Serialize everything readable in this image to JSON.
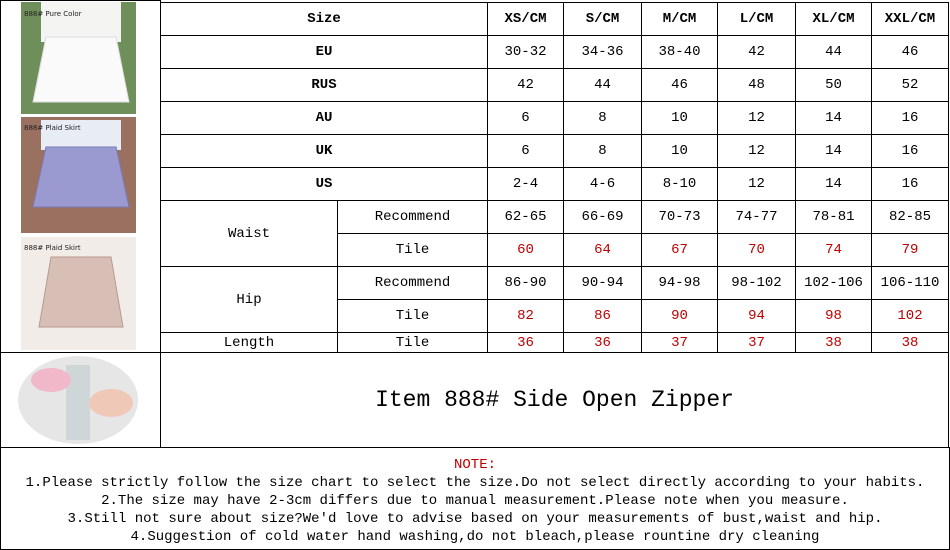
{
  "images": [
    {
      "caption": "888# Pure Color"
    },
    {
      "caption": "888# Plaid Skirt"
    },
    {
      "caption": "888# Plaid Skirt"
    }
  ],
  "table": {
    "header": [
      "Size",
      "XS/CM",
      "S/CM",
      "M/CM",
      "L/CM",
      "XL/CM",
      "XXL/CM"
    ],
    "simple_rows": [
      {
        "label": "EU",
        "cells": [
          "30-32",
          "34-36",
          "38-40",
          "42",
          "44",
          "46"
        ]
      },
      {
        "label": "RUS",
        "cells": [
          "42",
          "44",
          "46",
          "48",
          "50",
          "52"
        ]
      },
      {
        "label": "AU",
        "cells": [
          "6",
          "8",
          "10",
          "12",
          "14",
          "16"
        ]
      },
      {
        "label": "UK",
        "cells": [
          "6",
          "8",
          "10",
          "12",
          "14",
          "16"
        ]
      },
      {
        "label": "US",
        "cells": [
          "2-4",
          "4-6",
          "8-10",
          "12",
          "14",
          "16"
        ]
      }
    ],
    "measure_rows": [
      {
        "label": "Waist",
        "rows": [
          {
            "label": "Recommend",
            "cells": [
              "62-65",
              "66-69",
              "70-73",
              "74-77",
              "78-81",
              "82-85"
            ],
            "color": "#000000"
          },
          {
            "label": "Tile",
            "cells": [
              "60",
              "64",
              "67",
              "70",
              "74",
              "79"
            ],
            "color": "#c00000"
          }
        ]
      },
      {
        "label": "Hip",
        "rows": [
          {
            "label": "Recommend",
            "cells": [
              "86-90",
              "90-94",
              "94-98",
              "98-102",
              "102-106",
              "106-110"
            ],
            "color": "#000000"
          },
          {
            "label": "Tile",
            "cells": [
              "82",
              "86",
              "90",
              "94",
              "98",
              "102"
            ],
            "color": "#c00000"
          }
        ]
      },
      {
        "label": "Length",
        "rows": [
          {
            "label": "Tile",
            "cells": [
              "36",
              "36",
              "37",
              "37",
              "38",
              "38"
            ],
            "color": "#c00000"
          }
        ]
      }
    ]
  },
  "item": {
    "title": "Item 888# Side Open Zipper"
  },
  "notes": {
    "title": "NOTE:",
    "lines": [
      "1.Please strictly follow the size chart to select the size.Do not select directly according to your habits.",
      "2.The size may have 2-3cm differs due to manual measurement.Please note when you measure.",
      "3.Still not sure about size?We'd love to advise based on your measurements of bust,waist and hip.",
      "4.Suggestion of cold water hand washing,do not bleach,please rountine dry cleaning"
    ]
  }
}
